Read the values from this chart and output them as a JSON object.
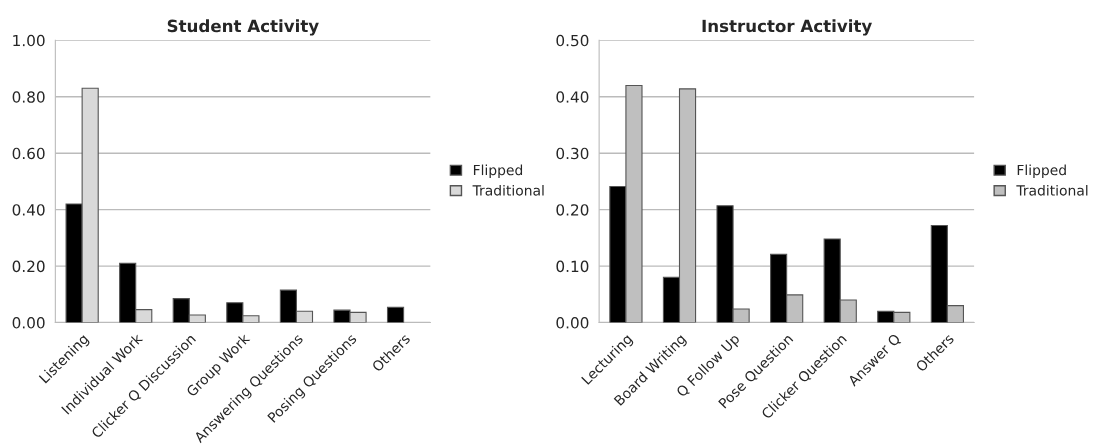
{
  "chart_data": [
    {
      "type": "bar",
      "title": "Student Activity",
      "categories": [
        "Listening",
        "Individual Work",
        "Clicker Q Discussion",
        "Group Work",
        "Answering Questions",
        "Posing Questions",
        "Others"
      ],
      "series": [
        {
          "name": "Flipped",
          "color": "#000000",
          "values": [
            0.42,
            0.21,
            0.085,
            0.07,
            0.115,
            0.044,
            0.054
          ]
        },
        {
          "name": "Traditional",
          "color": "#d9d9d9",
          "values": [
            0.83,
            0.046,
            0.027,
            0.024,
            0.04,
            0.036,
            null
          ]
        }
      ],
      "ylim": [
        0,
        1
      ],
      "yticks": [
        {
          "value": 0,
          "label": "0.00"
        },
        {
          "value": 0.2,
          "label": "0.20"
        },
        {
          "value": 0.4,
          "label": "0.40"
        },
        {
          "value": 0.6,
          "label": "0.60"
        },
        {
          "value": 0.8,
          "label": "0.80"
        },
        {
          "value": 1,
          "label": "1.00"
        }
      ],
      "grid": "y",
      "legend": "right"
    },
    {
      "type": "bar",
      "title": "Instructor Activity",
      "categories": [
        "Lecturing",
        "Board Writing",
        "Q Follow Up",
        "Pose Question",
        "Clicker Question",
        "Answer Q",
        "Others"
      ],
      "series": [
        {
          "name": "Flipped",
          "color": "#000000",
          "values": [
            0.241,
            0.08,
            0.207,
            0.121,
            0.148,
            0.02,
            0.172
          ]
        },
        {
          "name": "Traditional",
          "color": "#bfbfbf",
          "values": [
            0.42,
            0.414,
            0.024,
            0.049,
            0.04,
            0.018,
            0.03
          ]
        }
      ],
      "ylim": [
        0,
        0.5
      ],
      "yticks": [
        {
          "value": 0,
          "label": "0.00"
        },
        {
          "value": 0.1,
          "label": "0.10"
        },
        {
          "value": 0.2,
          "label": "0.20"
        },
        {
          "value": 0.3,
          "label": "0.30"
        },
        {
          "value": 0.4,
          "label": "0.40"
        },
        {
          "value": 0.5,
          "label": "0.50"
        }
      ],
      "grid": "y",
      "legend": "right"
    }
  ]
}
